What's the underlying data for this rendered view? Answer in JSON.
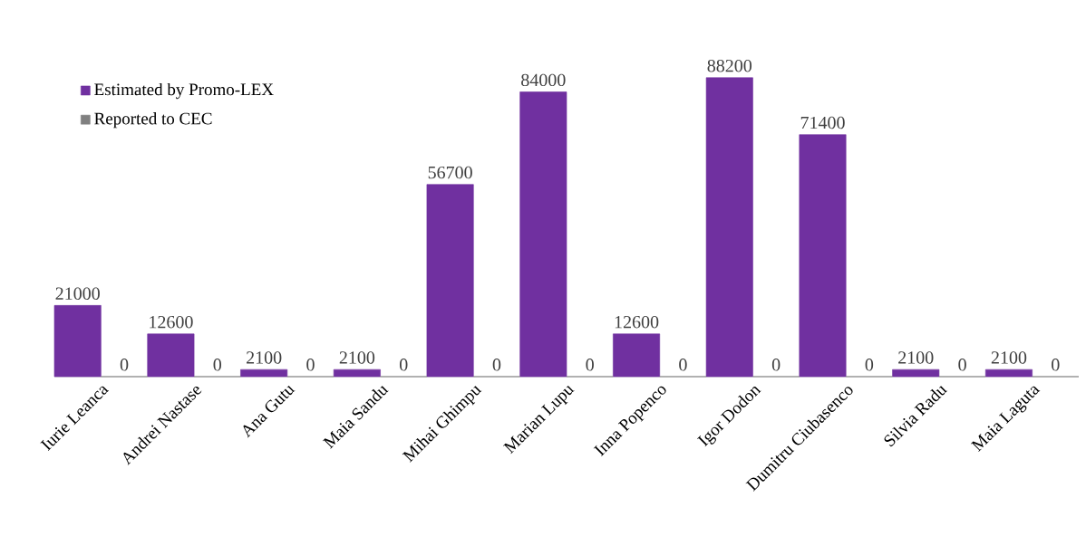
{
  "chart_data": {
    "type": "bar",
    "categories": [
      "Iurie Leanca",
      "Andrei Nastase",
      "Ana Gutu",
      "Maia Sandu",
      "Mihai Ghimpu",
      "Marian Lupu",
      "Inna Popenco",
      "Igor Dodon",
      "Dumitru Ciubasenco",
      "Silvia Radu",
      "Maia Laguta"
    ],
    "series": [
      {
        "name": "Estimated by Promo-LEX",
        "color": "#7030a0",
        "values": [
          21000,
          12600,
          2100,
          2100,
          56700,
          84000,
          12600,
          88200,
          71400,
          2100,
          2100
        ]
      },
      {
        "name": "Reported to CEC",
        "color": "#808080",
        "values": [
          0,
          0,
          0,
          0,
          0,
          0,
          0,
          0,
          0,
          0,
          0
        ]
      }
    ],
    "data_labels": true,
    "legend": "top left"
  }
}
